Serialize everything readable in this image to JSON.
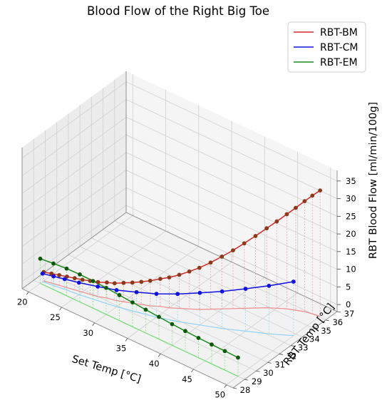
{
  "chart_data": {
    "type": "line3d",
    "title": "Blood Flow of the Right Big Toe",
    "xlabel": "Set Temp [°C]",
    "ylabel": "RBT Temp [°C]",
    "zlabel": "RBT Blood Flow [ml/min/100g]",
    "xlim": [
      19,
      51
    ],
    "ylim": [
      28,
      37
    ],
    "zlim": [
      -2,
      38
    ],
    "x_ticks": [
      20,
      25,
      30,
      35,
      40,
      45,
      50
    ],
    "y_ticks": [
      28,
      29,
      30,
      31,
      32,
      33,
      34,
      35,
      36,
      37
    ],
    "z_ticks": [
      0,
      5,
      10,
      15,
      20,
      25,
      30,
      35
    ],
    "grid": true,
    "legend_position": "upper right",
    "series": [
      {
        "name": "RBT-BM",
        "color": "#d62728",
        "marker_color": "#8b3a1a",
        "shadow_color": "#f08080",
        "drop_color": "#e8a0a8",
        "x": [
          20,
          21,
          22,
          23,
          24,
          25,
          26,
          27,
          28,
          29,
          30,
          31,
          32,
          33,
          34,
          35,
          36,
          37,
          38,
          39,
          40,
          41,
          42,
          43,
          44,
          45,
          46,
          47,
          48,
          49,
          50
        ],
        "y": [
          29.3,
          29.4,
          29.5,
          29.6,
          29.7,
          29.8,
          29.9,
          30.0,
          30.2,
          30.3,
          30.5,
          30.7,
          30.9,
          31.1,
          31.4,
          31.6,
          31.9,
          32.2,
          32.5,
          32.9,
          33.3,
          33.7,
          34.1,
          34.5,
          34.9,
          35.2,
          35.5,
          35.7,
          35.9,
          36.0,
          36.1
        ],
        "z": [
          0.5,
          0.7,
          0.9,
          1.1,
          1.3,
          1.5,
          1.8,
          2.1,
          2.4,
          2.8,
          3.3,
          3.8,
          4.4,
          5.1,
          5.8,
          6.6,
          7.5,
          8.6,
          9.8,
          11.2,
          12.8,
          14.5,
          16.4,
          18.4,
          20.5,
          22.6,
          24.8,
          27.0,
          29.3,
          31.5,
          33.6
        ]
      },
      {
        "name": "RBT-CM",
        "color": "#1010e0",
        "marker_color": "#1010e0",
        "shadow_color": "#87cefa",
        "drop_color": "#a0d8f0",
        "x": [
          20,
          21.5,
          23,
          25,
          27.5,
          30,
          32.5,
          35,
          37.5,
          40,
          42.5,
          45,
          47.5,
          50
        ],
        "y": [
          29.2,
          29.3,
          29.4,
          29.5,
          29.7,
          29.9,
          30.2,
          30.5,
          30.9,
          31.4,
          31.9,
          32.5,
          33.1,
          33.8
        ],
        "z": [
          0.3,
          0.6,
          0.9,
          1.4,
          2.0,
          2.7,
          3.6,
          4.6,
          5.8,
          7.1,
          8.5,
          10.0,
          11.6,
          13.3
        ]
      },
      {
        "name": "RBT-EM",
        "color": "#1a8c1a",
        "marker_color": "#0b5a0b",
        "shadow_color": "#66dd66",
        "drop_color": "#80e080",
        "x": [
          20,
          22,
          24,
          26,
          28,
          30,
          32,
          34,
          36,
          38,
          40,
          42,
          44,
          46,
          48,
          50
        ],
        "y": [
          29.0,
          29.0,
          29.0,
          29.0,
          29.0,
          29.0,
          29.0,
          29.0,
          29.0,
          29.0,
          29.0,
          29.0,
          29.0,
          29.0,
          29.0,
          29.0
        ],
        "z": [
          5.0,
          5.4,
          5.7,
          5.8,
          5.7,
          5.5,
          5.2,
          4.9,
          4.6,
          4.3,
          4.0,
          3.8,
          3.6,
          3.5,
          3.4,
          3.3
        ]
      }
    ]
  }
}
